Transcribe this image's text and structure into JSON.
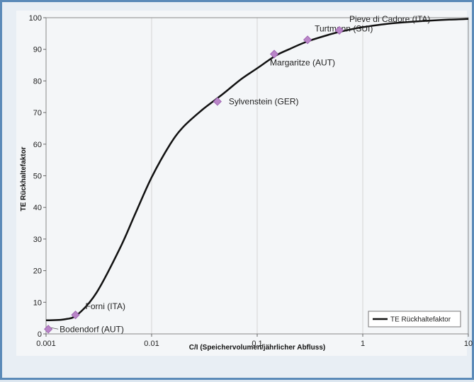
{
  "chart_data": {
    "type": "line",
    "title": "",
    "xlabel": "C/I (Speichervolumen/jährlicher Abfluss)",
    "ylabel": "TE Rückhaltefaktor",
    "x_scale": "log",
    "xlim": [
      0.001,
      10
    ],
    "ylim": [
      0,
      100
    ],
    "x_ticks": [
      {
        "value": 0.001,
        "label": "0.001"
      },
      {
        "value": 0.01,
        "label": "0.01"
      },
      {
        "value": 0.1,
        "label": "0.1"
      },
      {
        "value": 1,
        "label": "1"
      },
      {
        "value": 10,
        "label": "10"
      }
    ],
    "y_ticks": [
      {
        "value": 0,
        "label": "0"
      },
      {
        "value": 10,
        "label": "10"
      },
      {
        "value": 20,
        "label": "20"
      },
      {
        "value": 30,
        "label": "30"
      },
      {
        "value": 40,
        "label": "40"
      },
      {
        "value": 50,
        "label": "50"
      },
      {
        "value": 60,
        "label": "60"
      },
      {
        "value": 70,
        "label": "70"
      },
      {
        "value": 80,
        "label": "80"
      },
      {
        "value": 90,
        "label": "90"
      },
      {
        "value": 100,
        "label": "100"
      }
    ],
    "grid": "vertical at decades",
    "legend_position": "bottom-right",
    "series": [
      {
        "name": "TE Rückhaltefaktor",
        "color": "#111111",
        "x": [
          0.001,
          0.0015,
          0.002,
          0.003,
          0.005,
          0.007,
          0.01,
          0.015,
          0.02,
          0.03,
          0.04,
          0.05,
          0.07,
          0.1,
          0.15,
          0.2,
          0.3,
          0.5,
          0.7,
          1,
          2,
          5,
          10
        ],
        "y": [
          4.3,
          4.6,
          6.2,
          13,
          27,
          38,
          49.5,
          60,
          65.5,
          70.8,
          74,
          76.5,
          80.5,
          84,
          88,
          90,
          92.5,
          94.8,
          96,
          97,
          98.3,
          99.2,
          99.6
        ]
      }
    ],
    "points": [
      {
        "label": "Bodendorf (AUT)",
        "x": 0.00105,
        "y": 1.5
      },
      {
        "label": "Forni (ITA)",
        "x": 0.0019,
        "y": 6
      },
      {
        "label": "Sylvenstein (GER)",
        "x": 0.042,
        "y": 73.5
      },
      {
        "label": "Margaritze (AUT)",
        "x": 0.145,
        "y": 88.5
      },
      {
        "label": "Turtmann (SUI)",
        "x": 0.3,
        "y": 93
      },
      {
        "label": "Pieve di Cadore (ITA)",
        "x": 0.6,
        "y": 96
      }
    ],
    "point_color": "#b985c8"
  }
}
